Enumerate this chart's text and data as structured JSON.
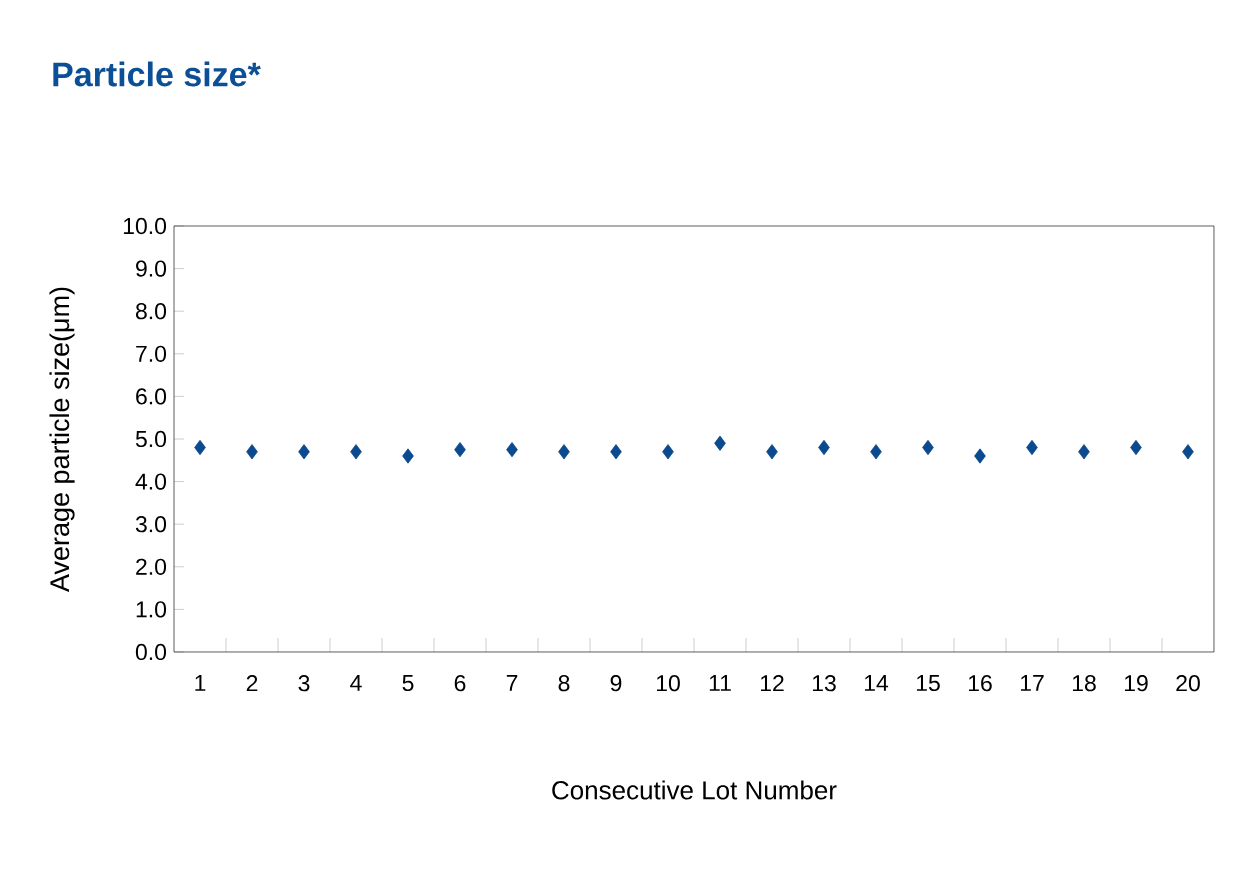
{
  "chart_data": {
    "type": "scatter",
    "title": "Particle size*",
    "xlabel": "Consecutive Lot Number",
    "ylabel": "Average particle size(μm)",
    "categories": [
      "1",
      "2",
      "3",
      "4",
      "5",
      "6",
      "7",
      "8",
      "9",
      "10",
      "11",
      "12",
      "13",
      "14",
      "15",
      "16",
      "17",
      "18",
      "19",
      "20"
    ],
    "series": [
      {
        "color": "#0b4a8e",
        "values": [
          4.8,
          4.7,
          4.7,
          4.7,
          4.6,
          4.75,
          4.75,
          4.7,
          4.7,
          4.7,
          4.9,
          4.7,
          4.8,
          4.7,
          4.8,
          4.6,
          4.8,
          4.7,
          4.8,
          4.7
        ]
      }
    ],
    "ylim": [
      0,
      10
    ],
    "yticks": [
      {
        "value": 0,
        "label": "0.0"
      },
      {
        "value": 1,
        "label": "1.0"
      },
      {
        "value": 2,
        "label": "2.0"
      },
      {
        "value": 3,
        "label": "3.0"
      },
      {
        "value": 4,
        "label": "4.0"
      },
      {
        "value": 5,
        "label": "5.0"
      },
      {
        "value": 6,
        "label": "6.0"
      },
      {
        "value": 7,
        "label": "7.0"
      },
      {
        "value": 8,
        "label": "8.0"
      },
      {
        "value": 9,
        "label": "9.0"
      },
      {
        "value": 10,
        "label": "10.0"
      }
    ],
    "marker": "diamond",
    "grid": false
  }
}
